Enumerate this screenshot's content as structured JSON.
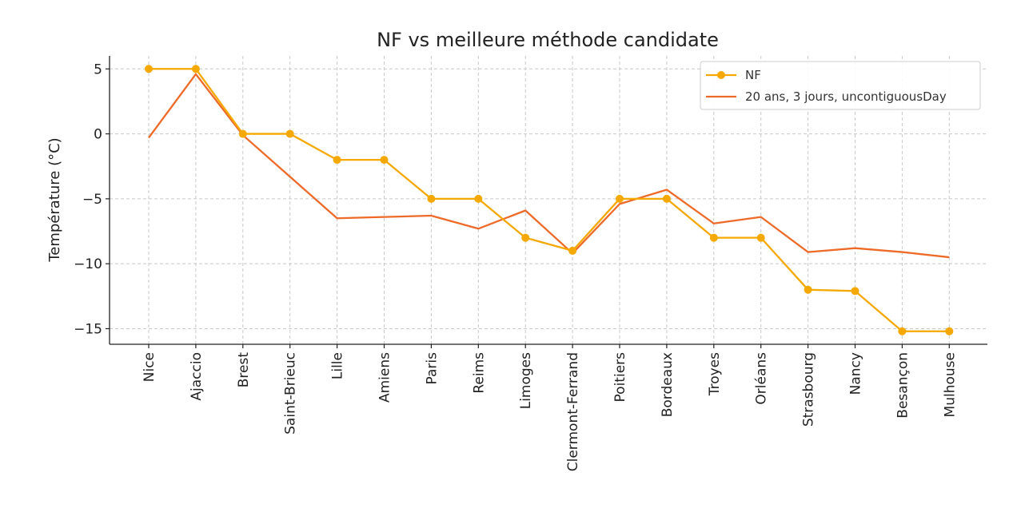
{
  "chart_data": {
    "type": "line",
    "title": "NF vs meilleure méthode candidate",
    "ylabel": "Température (°C)",
    "xlabel": "",
    "categories": [
      "Nice",
      "Ajaccio",
      "Brest",
      "Saint-Brieuc",
      "Lille",
      "Amiens",
      "Paris",
      "Reims",
      "Limoges",
      "Clermont-Ferrand",
      "Poitiers",
      "Bordeaux",
      "Troyes",
      "Orléans",
      "Strasbourg",
      "Nancy",
      "Besançon",
      "Mulhouse"
    ],
    "ylim": [
      -16.2,
      6.0
    ],
    "yticks": [
      5,
      0,
      -5,
      -10,
      -15
    ],
    "ytick_labels": [
      "5",
      "0",
      "−5",
      "−10",
      "−15"
    ],
    "grid": true,
    "legend_position": "top-right",
    "series": [
      {
        "name": "NF",
        "color": "#F5A800",
        "marker": "circle",
        "values": [
          5,
          5,
          0,
          0,
          -2,
          -2,
          -5,
          -5,
          -8,
          -9,
          -5,
          -5,
          -8,
          -8,
          -12,
          -12.1,
          -15.2,
          -15.2
        ]
      },
      {
        "name": "20 ans, 3 jours, uncontiguousDay",
        "color": "#EE6A28",
        "marker": "none",
        "values": [
          -0.3,
          4.6,
          -0.1,
          -3.3,
          -6.5,
          -6.4,
          -6.3,
          -7.3,
          -5.9,
          -9.2,
          -5.4,
          -4.3,
          -6.9,
          -6.4,
          -9.1,
          -8.8,
          -9.1,
          -9.5
        ]
      }
    ]
  }
}
